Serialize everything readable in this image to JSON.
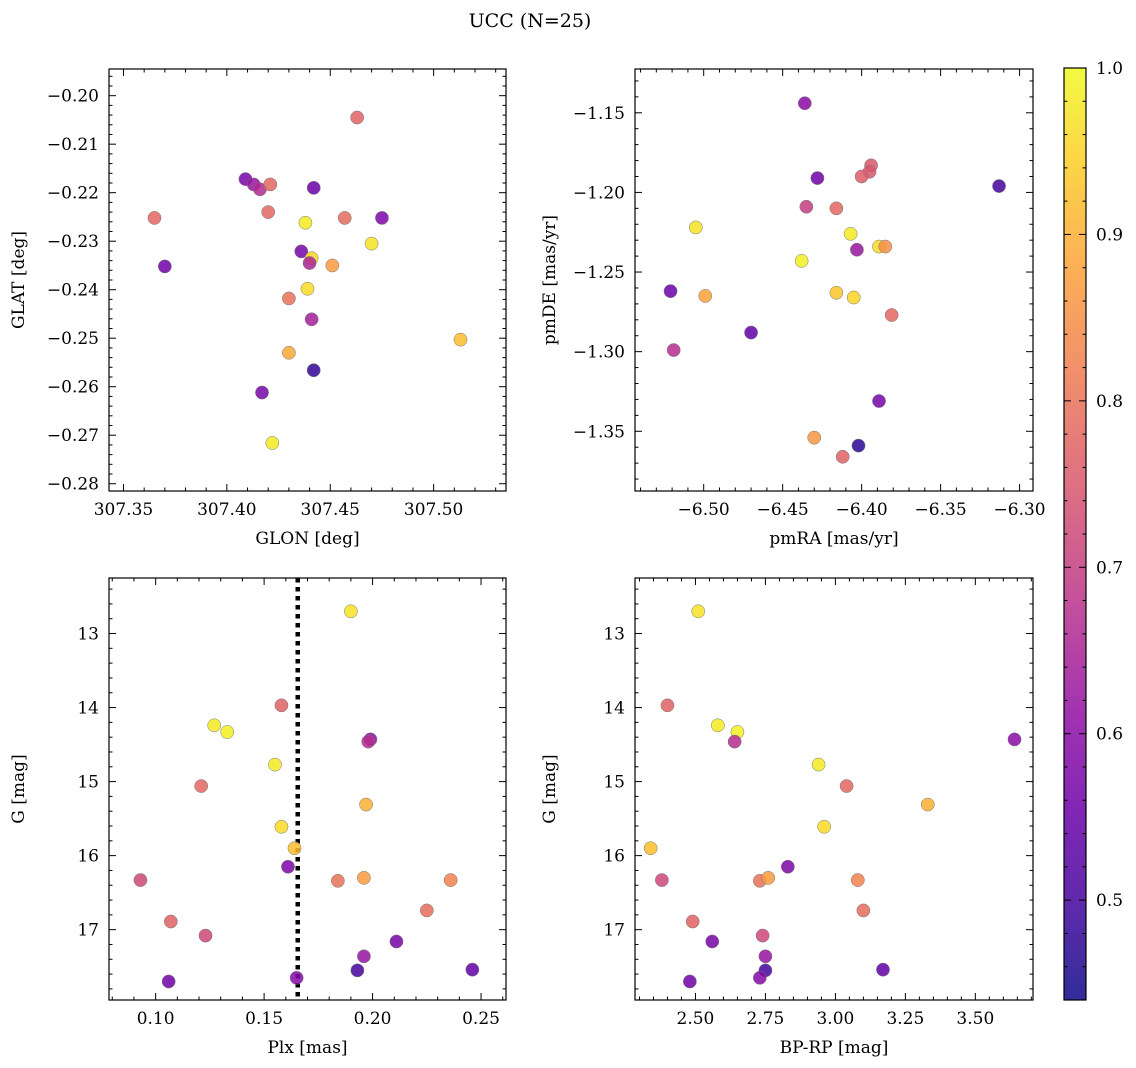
{
  "title": "UCC (N=25)",
  "chart_data": [
    {
      "type": "scatter",
      "xlabel": "GLON [deg]",
      "ylabel": "GLAT [deg]",
      "xlim": [
        307.343,
        307.535
      ],
      "ylim": [
        -0.2815,
        -0.1945
      ],
      "xticks": [
        307.35,
        307.4,
        307.45,
        307.5
      ],
      "xtick_labels": [
        "307.35",
        "307.40",
        "307.45",
        "307.50"
      ],
      "yticks": [
        -0.28,
        -0.27,
        -0.26,
        -0.25,
        -0.24,
        -0.23,
        -0.22,
        -0.21,
        -0.2
      ],
      "ytick_labels": [
        "−0.28",
        "−0.27",
        "−0.26",
        "−0.25",
        "−0.24",
        "−0.23",
        "−0.22",
        "−0.21",
        "−0.20"
      ],
      "y_inverted": false,
      "points": [
        {
          "x": 307.463,
          "y": -0.2045,
          "c": 0.77
        },
        {
          "x": 307.409,
          "y": -0.2172,
          "c": 0.57
        },
        {
          "x": 307.413,
          "y": -0.2183,
          "c": 0.62
        },
        {
          "x": 307.416,
          "y": -0.2193,
          "c": 0.66
        },
        {
          "x": 307.421,
          "y": -0.2183,
          "c": 0.78
        },
        {
          "x": 307.442,
          "y": -0.219,
          "c": 0.55
        },
        {
          "x": 307.365,
          "y": -0.2252,
          "c": 0.78
        },
        {
          "x": 307.42,
          "y": -0.224,
          "c": 0.78
        },
        {
          "x": 307.438,
          "y": -0.2262,
          "c": 0.98
        },
        {
          "x": 307.457,
          "y": -0.2252,
          "c": 0.79
        },
        {
          "x": 307.475,
          "y": -0.2252,
          "c": 0.58
        },
        {
          "x": 307.47,
          "y": -0.2305,
          "c": 0.97
        },
        {
          "x": 307.436,
          "y": -0.2321,
          "c": 0.57
        },
        {
          "x": 307.37,
          "y": -0.2352,
          "c": 0.56
        },
        {
          "x": 307.441,
          "y": -0.2335,
          "c": 0.95
        },
        {
          "x": 307.44,
          "y": -0.2345,
          "c": 0.65
        },
        {
          "x": 307.451,
          "y": -0.235,
          "c": 0.87
        },
        {
          "x": 307.439,
          "y": -0.2398,
          "c": 0.96
        },
        {
          "x": 307.43,
          "y": -0.2418,
          "c": 0.8
        },
        {
          "x": 307.441,
          "y": -0.2461,
          "c": 0.64
        },
        {
          "x": 307.513,
          "y": -0.2503,
          "c": 0.92
        },
        {
          "x": 307.43,
          "y": -0.253,
          "c": 0.89
        },
        {
          "x": 307.442,
          "y": -0.2566,
          "c": 0.48
        },
        {
          "x": 307.417,
          "y": -0.2612,
          "c": 0.57
        },
        {
          "x": 307.422,
          "y": -0.2716,
          "c": 0.98
        }
      ]
    },
    {
      "type": "scatter",
      "xlabel": "pmRA [mas/yr]",
      "ylabel": "pmDE [mas/yr]",
      "xlim": [
        -6.5435,
        -6.2915
      ],
      "ylim": [
        -1.3875,
        -1.1225
      ],
      "xticks": [
        -6.5,
        -6.45,
        -6.4,
        -6.35,
        -6.3
      ],
      "xtick_labels": [
        "−6.50",
        "−6.45",
        "−6.40",
        "−6.35",
        "−6.30"
      ],
      "yticks": [
        -1.35,
        -1.3,
        -1.25,
        -1.2,
        -1.15
      ],
      "ytick_labels": [
        "−1.35",
        "−1.30",
        "−1.25",
        "−1.20",
        "−1.15"
      ],
      "y_inverted": false,
      "points": [
        {
          "x": -6.436,
          "y": -1.144,
          "c": 0.6
        },
        {
          "x": -6.394,
          "y": -1.183,
          "c": 0.75
        },
        {
          "x": -6.395,
          "y": -1.187,
          "c": 0.75
        },
        {
          "x": -6.4,
          "y": -1.19,
          "c": 0.76
        },
        {
          "x": -6.428,
          "y": -1.191,
          "c": 0.56
        },
        {
          "x": -6.313,
          "y": -1.196,
          "c": 0.5
        },
        {
          "x": -6.435,
          "y": -1.209,
          "c": 0.7
        },
        {
          "x": -6.416,
          "y": -1.21,
          "c": 0.78
        },
        {
          "x": -6.505,
          "y": -1.222,
          "c": 0.97
        },
        {
          "x": -6.407,
          "y": -1.226,
          "c": 0.98
        },
        {
          "x": -6.389,
          "y": -1.234,
          "c": 0.96
        },
        {
          "x": -6.385,
          "y": -1.234,
          "c": 0.85
        },
        {
          "x": -6.403,
          "y": -1.236,
          "c": 0.62
        },
        {
          "x": -6.438,
          "y": -1.243,
          "c": 0.99
        },
        {
          "x": -6.521,
          "y": -1.262,
          "c": 0.55
        },
        {
          "x": -6.416,
          "y": -1.263,
          "c": 0.93
        },
        {
          "x": -6.499,
          "y": -1.265,
          "c": 0.88
        },
        {
          "x": -6.405,
          "y": -1.266,
          "c": 0.95
        },
        {
          "x": -6.381,
          "y": -1.277,
          "c": 0.78
        },
        {
          "x": -6.47,
          "y": -1.288,
          "c": 0.54
        },
        {
          "x": -6.519,
          "y": -1.299,
          "c": 0.67
        },
        {
          "x": -6.389,
          "y": -1.331,
          "c": 0.57
        },
        {
          "x": -6.43,
          "y": -1.354,
          "c": 0.86
        },
        {
          "x": -6.402,
          "y": -1.359,
          "c": 0.47
        },
        {
          "x": -6.412,
          "y": -1.366,
          "c": 0.77
        }
      ]
    },
    {
      "type": "scatter",
      "xlabel": "Plx [mas]",
      "ylabel": "G [mag]",
      "xlim": [
        0.0785,
        0.2615
      ],
      "ylim": [
        17.95,
        12.25
      ],
      "xticks": [
        0.1,
        0.15,
        0.2,
        0.25
      ],
      "xtick_labels": [
        "0.10",
        "0.15",
        "0.20",
        "0.25"
      ],
      "yticks": [
        13,
        14,
        15,
        16,
        17
      ],
      "ytick_labels": [
        "13",
        "14",
        "15",
        "16",
        "17"
      ],
      "y_inverted": true,
      "vline": {
        "x": 0.1655,
        "style": "dotted"
      },
      "points": [
        {
          "x": 0.19,
          "y": 12.7,
          "c": 0.97
        },
        {
          "x": 0.158,
          "y": 13.97,
          "c": 0.77
        },
        {
          "x": 0.127,
          "y": 14.24,
          "c": 0.98
        },
        {
          "x": 0.133,
          "y": 14.33,
          "c": 0.99
        },
        {
          "x": 0.199,
          "y": 14.43,
          "c": 0.6
        },
        {
          "x": 0.198,
          "y": 14.46,
          "c": 0.67
        },
        {
          "x": 0.155,
          "y": 14.77,
          "c": 0.98
        },
        {
          "x": 0.121,
          "y": 15.06,
          "c": 0.78
        },
        {
          "x": 0.197,
          "y": 15.31,
          "c": 0.9
        },
        {
          "x": 0.158,
          "y": 15.61,
          "c": 0.96
        },
        {
          "x": 0.164,
          "y": 15.9,
          "c": 0.92
        },
        {
          "x": 0.161,
          "y": 16.15,
          "c": 0.58
        },
        {
          "x": 0.093,
          "y": 16.33,
          "c": 0.72
        },
        {
          "x": 0.184,
          "y": 16.34,
          "c": 0.8
        },
        {
          "x": 0.196,
          "y": 16.3,
          "c": 0.87
        },
        {
          "x": 0.236,
          "y": 16.33,
          "c": 0.83
        },
        {
          "x": 0.225,
          "y": 16.74,
          "c": 0.79
        },
        {
          "x": 0.107,
          "y": 16.89,
          "c": 0.77
        },
        {
          "x": 0.123,
          "y": 17.08,
          "c": 0.72
        },
        {
          "x": 0.211,
          "y": 17.16,
          "c": 0.57
        },
        {
          "x": 0.196,
          "y": 17.36,
          "c": 0.62
        },
        {
          "x": 0.193,
          "y": 17.55,
          "c": 0.5
        },
        {
          "x": 0.246,
          "y": 17.54,
          "c": 0.54
        },
        {
          "x": 0.165,
          "y": 17.65,
          "c": 0.59
        },
        {
          "x": 0.106,
          "y": 17.7,
          "c": 0.56
        }
      ]
    },
    {
      "type": "scatter",
      "xlabel": "BP-RP [mag]",
      "ylabel": "G [mag]",
      "xlim": [
        2.284,
        3.706
      ],
      "ylim": [
        17.95,
        12.25
      ],
      "xticks": [
        2.5,
        2.75,
        3.0,
        3.25,
        3.5
      ],
      "xtick_labels": [
        "2.50",
        "2.75",
        "3.00",
        "3.25",
        "3.50"
      ],
      "yticks": [
        13,
        14,
        15,
        16,
        17
      ],
      "ytick_labels": [
        "13",
        "14",
        "15",
        "16",
        "17"
      ],
      "y_inverted": true,
      "points": [
        {
          "x": 2.51,
          "y": 12.7,
          "c": 0.97
        },
        {
          "x": 2.4,
          "y": 13.97,
          "c": 0.77
        },
        {
          "x": 2.58,
          "y": 14.24,
          "c": 0.98
        },
        {
          "x": 2.65,
          "y": 14.33,
          "c": 0.99
        },
        {
          "x": 2.64,
          "y": 14.46,
          "c": 0.67
        },
        {
          "x": 3.64,
          "y": 14.43,
          "c": 0.6
        },
        {
          "x": 2.94,
          "y": 14.77,
          "c": 0.98
        },
        {
          "x": 3.04,
          "y": 15.06,
          "c": 0.78
        },
        {
          "x": 3.33,
          "y": 15.31,
          "c": 0.9
        },
        {
          "x": 2.96,
          "y": 15.61,
          "c": 0.96
        },
        {
          "x": 2.34,
          "y": 15.9,
          "c": 0.92
        },
        {
          "x": 2.83,
          "y": 16.15,
          "c": 0.58
        },
        {
          "x": 2.38,
          "y": 16.33,
          "c": 0.72
        },
        {
          "x": 2.73,
          "y": 16.34,
          "c": 0.8
        },
        {
          "x": 2.76,
          "y": 16.3,
          "c": 0.87
        },
        {
          "x": 3.08,
          "y": 16.33,
          "c": 0.83
        },
        {
          "x": 3.1,
          "y": 16.74,
          "c": 0.79
        },
        {
          "x": 2.49,
          "y": 16.89,
          "c": 0.77
        },
        {
          "x": 2.74,
          "y": 17.08,
          "c": 0.72
        },
        {
          "x": 2.56,
          "y": 17.16,
          "c": 0.57
        },
        {
          "x": 2.75,
          "y": 17.36,
          "c": 0.62
        },
        {
          "x": 2.75,
          "y": 17.55,
          "c": 0.5
        },
        {
          "x": 3.17,
          "y": 17.54,
          "c": 0.54
        },
        {
          "x": 2.73,
          "y": 17.65,
          "c": 0.59
        },
        {
          "x": 2.48,
          "y": 17.7,
          "c": 0.56
        }
      ]
    }
  ],
  "colorbar": {
    "colormap": "plasma",
    "range": [
      0.44,
      1.0
    ],
    "ticks": [
      0.5,
      0.6,
      0.7,
      0.8,
      0.9,
      1.0
    ],
    "tick_labels": [
      "0.5",
      "0.6",
      "0.7",
      "0.8",
      "0.9",
      "1.0"
    ]
  }
}
